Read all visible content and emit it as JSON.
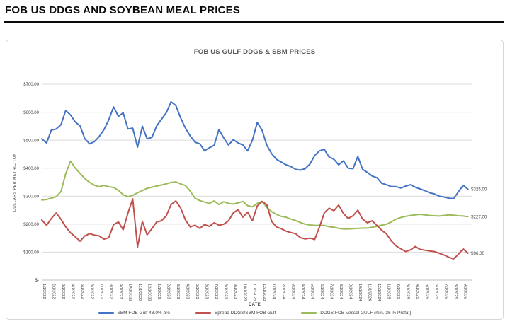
{
  "page": {
    "title": "FOB US DDGS AND SOYBEAN MEAL PRICES"
  },
  "chart_data": {
    "type": "line",
    "title": "FOB US GULF DDGS & SBM PRICES",
    "xlabel": "DATE",
    "ylabel": "DOLLARS PER METRIC TON",
    "ylim": [
      0,
      700
    ],
    "grid": "horizontal",
    "legend_position": "bottom",
    "y_tick_labels": [
      "$-",
      "$100.00",
      "$200.00",
      "$300.00",
      "$400.00",
      "$500.00",
      "$600.00",
      "$700.00"
    ],
    "x_tick_labels": [
      "1/1/2022",
      "2/1/2022",
      "3/1/2022",
      "4/1/2022",
      "5/1/2022",
      "6/1/2022",
      "7/1/2022",
      "8/1/2022",
      "9/1/2022",
      "10/1/2022",
      "11/1/2022",
      "12/1/2022",
      "1/1/2023",
      "2/1/2023",
      "3/1/2023",
      "4/1/2023",
      "5/1/2023",
      "6/1/2023",
      "7/1/2023",
      "8/1/2023",
      "9/1/2023",
      "10/1/2023",
      "11/1/2023",
      "12/1/2023",
      "1/1/2024",
      "2/1/2024",
      "3/1/2024",
      "4/1/2024",
      "5/1/2024",
      "6/1/2024",
      "7/1/2024",
      "8/1/2024",
      "9/1/2024",
      "10/1/2024",
      "11/1/2024",
      "12/1/2024",
      "1/1/2025",
      "2/1/2025",
      "3/1/2025",
      "4/1/2025",
      "5/1/2025",
      "6/1/2025",
      "7/1/2025",
      "8/1/2025",
      "9/1/2025"
    ],
    "points_per_month": 2,
    "series": [
      {
        "name": "SBM FOB Gulf 48.0% pro",
        "color": "#4472c4",
        "end_label": "$325.00",
        "values": [
          505,
          490,
          536,
          540,
          555,
          606,
          590,
          565,
          551,
          505,
          487,
          495,
          513,
          538,
          573,
          619,
          585,
          598,
          540,
          543,
          475,
          550,
          505,
          510,
          551,
          575,
          598,
          637,
          624,
          580,
          543,
          515,
          493,
          487,
          462,
          473,
          482,
          538,
          508,
          483,
          502,
          490,
          483,
          462,
          500,
          563,
          536,
          482,
          452,
          432,
          422,
          412,
          406,
          396,
          393,
          398,
          415,
          445,
          462,
          467,
          440,
          432,
          412,
          426,
          400,
          398,
          442,
          396,
          385,
          372,
          366,
          346,
          341,
          334,
          334,
          329,
          336,
          341,
          332,
          326,
          320,
          312,
          308,
          300,
          297,
          293,
          291,
          315,
          339,
          325
        ]
      },
      {
        "name": "Spread DDGS/SBM FOB Gulf",
        "color": "#c0504d",
        "end_label": "$96.00",
        "values": [
          215,
          196,
          220,
          240,
          218,
          190,
          169,
          155,
          139,
          158,
          166,
          161,
          158,
          146,
          152,
          198,
          208,
          180,
          240,
          290,
          118,
          210,
          162,
          184,
          208,
          212,
          230,
          270,
          283,
          258,
          215,
          190,
          196,
          185,
          198,
          192,
          205,
          196,
          200,
          212,
          240,
          252,
          225,
          243,
          212,
          265,
          281,
          270,
          210,
          190,
          184,
          175,
          170,
          166,
          152,
          147,
          150,
          145,
          190,
          240,
          257,
          248,
          268,
          238,
          220,
          230,
          250,
          218,
          205,
          212,
          195,
          178,
          165,
          140,
          122,
          112,
          102,
          108,
          120,
          110,
          107,
          104,
          102,
          96,
          90,
          82,
          76,
          92,
          112,
          96
        ]
      },
      {
        "name": "DDGS FOB Vessel GULF  (min. 36 % Profat)",
        "color": "#9bbb59",
        "end_label": "$227.00",
        "values": [
          286,
          288,
          293,
          298,
          316,
          380,
          425,
          400,
          381,
          363,
          349,
          339,
          334,
          338,
          334,
          331,
          321,
          305,
          298,
          303,
          312,
          320,
          328,
          332,
          336,
          340,
          344,
          349,
          351,
          344,
          338,
          318,
          293,
          284,
          279,
          274,
          283,
          270,
          280,
          274,
          272,
          276,
          281,
          266,
          262,
          274,
          281,
          260,
          245,
          235,
          228,
          225,
          218,
          213,
          206,
          200,
          197,
          195,
          195,
          195,
          191,
          189,
          185,
          183,
          183,
          184,
          185,
          186,
          186,
          189,
          192,
          196,
          200,
          208,
          218,
          224,
          228,
          231,
          233,
          235,
          233,
          231,
          230,
          229,
          231,
          233,
          232,
          230,
          229,
          227
        ]
      }
    ]
  },
  "colors": {
    "grid": "#dcdcdc",
    "axis": "#bfbfbf",
    "tick_text": "#404040",
    "end_label_text": "#3f3f3f"
  }
}
